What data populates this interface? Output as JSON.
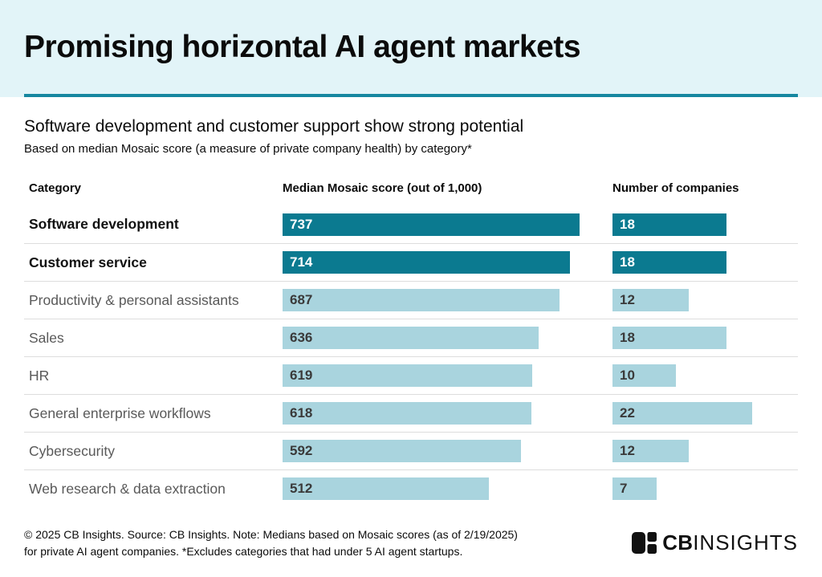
{
  "header": {
    "title": "Promising horizontal AI agent markets"
  },
  "subtitle": "Software development and customer support show strong potential",
  "subnote": "Based on median Mosaic score (a measure of private company health) by category*",
  "table": {
    "columns": [
      "Category",
      "Median Mosaic score (out of 1,000)",
      "Number of companies"
    ]
  },
  "chart_data": {
    "type": "bar",
    "orientation": "horizontal",
    "title": "Promising horizontal AI agent markets",
    "subtitle": "Software development and customer support show strong potential",
    "categories": [
      "Software development",
      "Customer service",
      "Productivity & personal assistants",
      "Sales",
      "HR",
      "General enterprise workflows",
      "Cybersecurity",
      "Web research & data extraction"
    ],
    "series": [
      {
        "name": "Median Mosaic score (out of 1,000)",
        "max_scale": 1000,
        "values": [
          737,
          714,
          687,
          636,
          619,
          618,
          592,
          512
        ]
      },
      {
        "name": "Number of companies",
        "values": [
          18,
          18,
          12,
          18,
          10,
          22,
          12,
          7
        ]
      }
    ],
    "emphasized_categories": [
      "Software development",
      "Customer service"
    ],
    "legend_position": "none",
    "grid": false
  },
  "footer": {
    "line1": "© 2025 CB Insights. Source: CB Insights. Note: Medians based on Mosaic scores (as of 2/19/2025)",
    "line2": "for private AI agent companies. *Excludes categories that had under 5 AI agent startups.",
    "logo_cb": "CB",
    "logo_insights": "INSIGHTS"
  },
  "colors": {
    "header_bg": "#e2f4f8",
    "rule": "#1687a0",
    "bar_dark": "#0b7a90",
    "bar_light": "#a9d4de"
  }
}
